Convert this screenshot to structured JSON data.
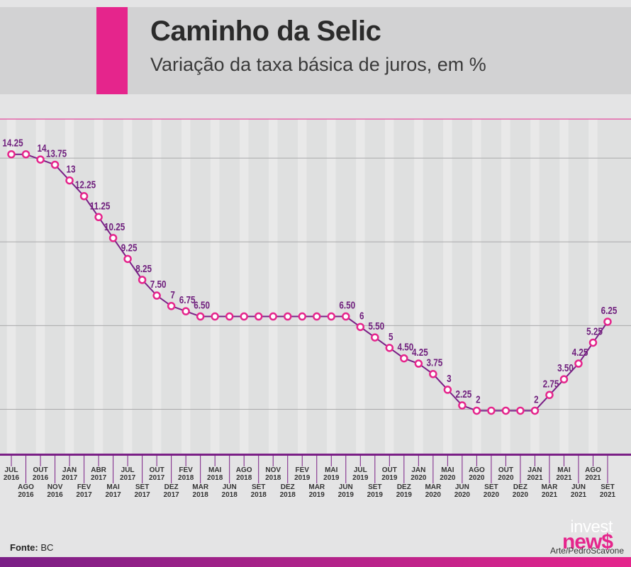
{
  "title": "Caminho da Selic",
  "subtitle": "Variação da taxa básica de juros, em %",
  "source_label": "Fonte:",
  "source_value": "BC",
  "credit": "Arte/PedroScavone",
  "logo": {
    "top": "invest",
    "bottom": "new",
    "accent": "$"
  },
  "colors": {
    "accent": "#e5258c",
    "line": "#7a1f86",
    "marker_fill": "#ffffff",
    "marker_stroke": "#e5258c",
    "bottom_bar_start": "#7a1f86",
    "bottom_bar_end": "#e5258c"
  },
  "chart_data": {
    "type": "line",
    "title": "Caminho da Selic",
    "subtitle": "Variação da taxa básica de juros, em %",
    "xlabel": "",
    "ylabel": "",
    "ylim": [
      0,
      15
    ],
    "grid": true,
    "legend": "none",
    "x": [
      [
        "JUL",
        "2016"
      ],
      [
        "AGO",
        "2016"
      ],
      [
        "OUT",
        "2016"
      ],
      [
        "NOV",
        "2016"
      ],
      [
        "JAN",
        "2017"
      ],
      [
        "FEV",
        "2017"
      ],
      [
        "ABR",
        "2017"
      ],
      [
        "MAI",
        "2017"
      ],
      [
        "JUL",
        "2017"
      ],
      [
        "SET",
        "2017"
      ],
      [
        "OUT",
        "2017"
      ],
      [
        "DEZ",
        "2017"
      ],
      [
        "FEV",
        "2018"
      ],
      [
        "MAR",
        "2018"
      ],
      [
        "MAI",
        "2018"
      ],
      [
        "JUN",
        "2018"
      ],
      [
        "AGO",
        "2018"
      ],
      [
        "SET",
        "2018"
      ],
      [
        "NOV",
        "2018"
      ],
      [
        "DEZ",
        "2018"
      ],
      [
        "FEV",
        "2019"
      ],
      [
        "MAR",
        "2019"
      ],
      [
        "MAI",
        "2019"
      ],
      [
        "JUN",
        "2019"
      ],
      [
        "JUL",
        "2019"
      ],
      [
        "SET",
        "2019"
      ],
      [
        "OUT",
        "2019"
      ],
      [
        "DEZ",
        "2019"
      ],
      [
        "JAN",
        "2020"
      ],
      [
        "MAR",
        "2020"
      ],
      [
        "MAI",
        "2020"
      ],
      [
        "JUN",
        "2020"
      ],
      [
        "AGO",
        "2020"
      ],
      [
        "SET",
        "2020"
      ],
      [
        "OUT",
        "2020"
      ],
      [
        "DEZ",
        "2020"
      ],
      [
        "JAN",
        "2021"
      ],
      [
        "MAR",
        "2021"
      ],
      [
        "MAI",
        "2021"
      ],
      [
        "JUN",
        "2021"
      ],
      [
        "AGO",
        "2021"
      ],
      [
        "SET",
        "2021"
      ]
    ],
    "values": [
      14.25,
      14.25,
      14,
      13.75,
      13,
      12.25,
      11.25,
      10.25,
      9.25,
      8.25,
      7.5,
      7,
      6.75,
      6.5,
      6.5,
      6.5,
      6.5,
      6.5,
      6.5,
      6.5,
      6.5,
      6.5,
      6.5,
      6.5,
      6,
      5.5,
      5,
      4.5,
      4.25,
      3.75,
      3,
      2.25,
      2,
      2,
      2,
      2,
      2,
      2.75,
      3.5,
      4.25,
      5.25,
      6.25
    ],
    "data_labels": [
      "14.25",
      "",
      "14",
      "13.75",
      "13",
      "12.25",
      "11.25",
      "10.25",
      "9.25",
      "8.25",
      "7.50",
      "7",
      "6.75",
      "6.50",
      "",
      "",
      "",
      "",
      "",
      "",
      "",
      "",
      "",
      "6.50",
      "6",
      "5.50",
      "5",
      "4.50",
      "4.25",
      "3.75",
      "3",
      "2.25",
      "2",
      "",
      "",
      "",
      "2",
      "2.75",
      "3.50",
      "4.25",
      "5.25",
      "6.25"
    ]
  }
}
